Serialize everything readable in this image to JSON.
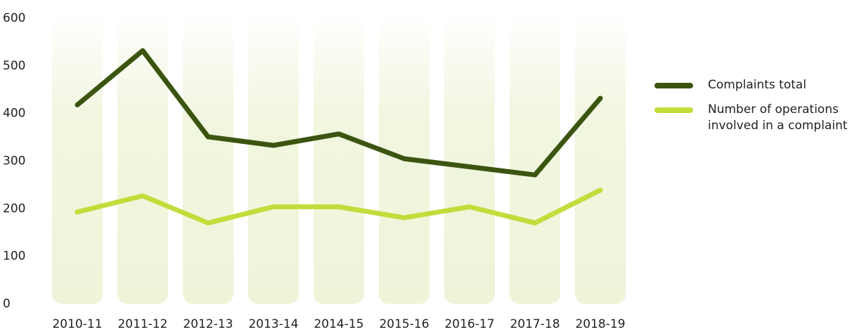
{
  "chart_data": {
    "type": "line",
    "categories": [
      "2010-11",
      "2011-12",
      "2012-13",
      "2013-14",
      "2014-15",
      "2015-16",
      "2016-17",
      "2017-18",
      "2018-19"
    ],
    "series": [
      {
        "name": "Complaints total",
        "color": "#3b5510",
        "values": [
          418,
          532,
          351,
          333,
          357,
          305,
          288,
          271,
          432
        ]
      },
      {
        "name": "Number of operations involved in a complaint",
        "color": "#c3dc3c",
        "values": [
          193,
          227,
          170,
          204,
          204,
          181,
          204,
          170,
          239
        ]
      }
    ],
    "ylim": [
      0,
      600
    ],
    "yticks": [
      0,
      100,
      200,
      300,
      400,
      500,
      600
    ],
    "grid": false,
    "legend": "right"
  }
}
